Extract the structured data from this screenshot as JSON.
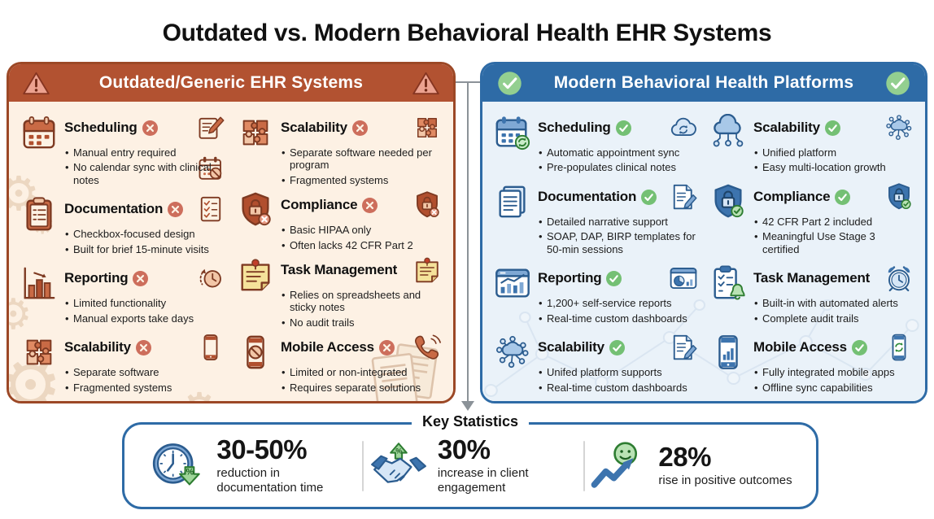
{
  "page_title": "Outdated vs. Modern Behavioral Health EHR Systems",
  "left_panel": {
    "title": "Outdated/Generic EHR Systems",
    "header_icon": "warning-triangle",
    "columns": [
      {
        "sections": [
          {
            "title": "Scheduling",
            "badge": "badge-x",
            "icon": "calendar",
            "side_icons": [
              "note-pen",
              "calendar-blocked"
            ],
            "bullets": [
              "Manual entry required",
              "No calendar sync with clinical notes"
            ]
          },
          {
            "title": "Documentation",
            "badge": "badge-x",
            "icon": "clipboard",
            "side_icons": [
              "checklist"
            ],
            "bullets": [
              "Checkbox-focused design",
              "Built for brief 15-minute visits"
            ]
          },
          {
            "title": "Reporting",
            "badge": "badge-x",
            "icon": "bar-chart",
            "side_icons": [
              "history-clock"
            ],
            "bullets": [
              "Limited functionality",
              "Manual exports take days"
            ]
          },
          {
            "title": "Scalability",
            "badge": "badge-x",
            "icon": "puzzle",
            "side_icons": [
              "smartphone"
            ],
            "bullets": [
              "Separate software",
              "Fragmented systems"
            ]
          }
        ]
      },
      {
        "sections": [
          {
            "title": "Scalability",
            "badge": "badge-x",
            "icon": "puzzle",
            "side_icons": [
              "puzzle"
            ],
            "bullets": [
              "Separate software needed per program",
              "Fragmented systems"
            ]
          },
          {
            "title": "Compliance",
            "badge": "badge-x",
            "icon": "shield-lock-x",
            "side_icons": [
              "shield-lock-x"
            ],
            "bullets": [
              "Basic HIPAA only",
              "Often lacks 42 CFR Part 2"
            ]
          },
          {
            "title": "Task Management",
            "badge": null,
            "icon": "sticky-note",
            "side_icons": [
              "sticky-note"
            ],
            "bullets": [
              "Relies on spreadsheets and sticky notes",
              "No audit trails"
            ]
          },
          {
            "title": "Mobile Access",
            "badge": "badge-x",
            "icon": "phone-blocked",
            "side_icons": [
              "phone-handset"
            ],
            "bullets": [
              "Limited or non-integrated",
              "Requires separate solutions"
            ]
          }
        ]
      }
    ]
  },
  "right_panel": {
    "title": "Modern Behavioral Health Platforms",
    "header_icon": "check-circle",
    "columns": [
      {
        "sections": [
          {
            "title": "Scheduling",
            "badge": "badge-check",
            "icon": "calendar-sync",
            "side_icons": [
              "cloud-sync"
            ],
            "bullets": [
              "Automatic appointment sync",
              "Pre-populates clinical notes"
            ]
          },
          {
            "title": "Documentation",
            "badge": "badge-check",
            "icon": "documents",
            "side_icons": [
              "doc-pen"
            ],
            "bullets": [
              "Detailed narrative support",
              "SOAP, DAP, BIRP templates for 50-min sessions"
            ]
          },
          {
            "title": "Reporting",
            "badge": "badge-check",
            "icon": "chart-window",
            "side_icons": [
              "pie-window"
            ],
            "bullets": [
              "1,200+ self-service reports",
              "Real-time custom dashboards"
            ]
          },
          {
            "title": "Scalability",
            "badge": "badge-check",
            "icon": "network-hub",
            "side_icons": [
              "doc-pen"
            ],
            "bullets": [
              "Unifed platform supports",
              "Real-time custom dashboards"
            ]
          }
        ]
      },
      {
        "sections": [
          {
            "title": "Scalability",
            "badge": "badge-check",
            "icon": "cloud-network",
            "side_icons": [
              "network-hub"
            ],
            "bullets": [
              "Unified platform",
              "Easy multi-location growth"
            ]
          },
          {
            "title": "Compliance",
            "badge": "badge-check",
            "icon": "shield-check",
            "side_icons": [
              "shield-check"
            ],
            "bullets": [
              "42 CFR Part 2 included",
              "Meaningful Use Stage 3 certified"
            ]
          },
          {
            "title": "Task Management",
            "badge": null,
            "icon": "checklist-bell",
            "side_icons": [
              "alarm-clock"
            ],
            "bullets": [
              "Built-in with automated alerts",
              "Complete audit trails"
            ]
          },
          {
            "title": "Mobile Access",
            "badge": "badge-check",
            "icon": "phone-chart",
            "side_icons": [
              "phone-sync"
            ],
            "bullets": [
              "Fully integrated mobile apps",
              "Offline sync capabilities"
            ]
          }
        ]
      }
    ]
  },
  "key_statistics": {
    "title": "Key Statistics",
    "stats": [
      {
        "icon": "stat-clock",
        "value": "30-50%",
        "label": "reduction in documentation time"
      },
      {
        "icon": "stat-handshake",
        "value": "30%",
        "label": "increase in client engagement"
      },
      {
        "icon": "stat-smiley",
        "value": "28%",
        "label": "rise in positive outcomes"
      }
    ]
  },
  "colors": {
    "outdated_header": "#b25231",
    "outdated_body": "#fdf1e4",
    "outdated_border": "#9c4826",
    "modern_header": "#2e6ba6",
    "modern_body": "#eaf2f9",
    "modern_border": "#2e6ba6",
    "x_badge": "#cd6e5c",
    "check_badge": "#74c074",
    "stats_border": "#2e6ba6"
  }
}
